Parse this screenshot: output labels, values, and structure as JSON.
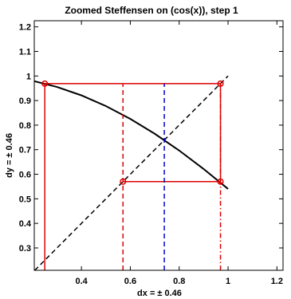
{
  "chart_data": {
    "type": "line",
    "title": "Zoomed Steffensen on (cos(x)), step 1",
    "xlabel": "dx = ± 0.46",
    "ylabel": "dy = ± 0.46",
    "xlim": [
      0.207,
      1.225
    ],
    "ylim": [
      0.209,
      1.225
    ],
    "xticks": [
      0.4,
      0.6,
      0.8,
      1,
      1.2
    ],
    "yticks": [
      0.3,
      0.4,
      0.5,
      0.6,
      0.7,
      0.8,
      0.9,
      1,
      1.1,
      1.2
    ],
    "xtick_labels": [
      "0.4",
      "0.6",
      "0.8",
      "1",
      "1.2"
    ],
    "ytick_labels": [
      "0.3",
      "0.4",
      "0.5",
      "0.6",
      "0.7",
      "0.8",
      "0.9",
      "1",
      "1.1",
      "1.2"
    ],
    "grid": false,
    "series": [
      {
        "role": "cos(x) curve",
        "color": "#000000",
        "style": "solid",
        "x": [
          0.207,
          0.3,
          0.4,
          0.5,
          0.6,
          0.7,
          0.8,
          0.9,
          1.0
        ],
        "y": [
          0.9787,
          0.9553,
          0.9211,
          0.8776,
          0.8253,
          0.7648,
          0.6967,
          0.6216,
          0.5403
        ]
      },
      {
        "role": "identity line y = x",
        "color": "#000000",
        "style": "dashed",
        "x": [
          0.209,
          1.0
        ],
        "y": [
          0.209,
          1.0
        ]
      },
      {
        "role": "iteration box",
        "color": "#dd0000",
        "style": "solid",
        "x": [
          0.25,
          0.25,
          0.969,
          0.969,
          0.57,
          0.57
        ],
        "y": [
          0.209,
          0.969,
          0.969,
          0.57,
          0.57,
          0.57
        ]
      },
      {
        "role": "iteration guide at x = 0.57",
        "color": "#dd0000",
        "style": "dashed",
        "x": [
          0.57,
          0.57
        ],
        "y": [
          0.209,
          0.969
        ]
      },
      {
        "role": "iteration guide at x = 0.969",
        "color": "#dd0000",
        "style": "dashdot",
        "x": [
          0.969,
          0.969
        ],
        "y": [
          0.209,
          0.969
        ]
      },
      {
        "role": "fixed point guide",
        "color": "#0000cc",
        "style": "dashed",
        "x": [
          0.7391,
          0.7391
        ],
        "y": [
          0.209,
          0.969
        ]
      }
    ],
    "points": {
      "color": "#dd0000",
      "x": [
        0.25,
        0.969,
        0.969,
        0.57
      ],
      "y": [
        0.969,
        0.969,
        0.57,
        0.57
      ]
    }
  }
}
